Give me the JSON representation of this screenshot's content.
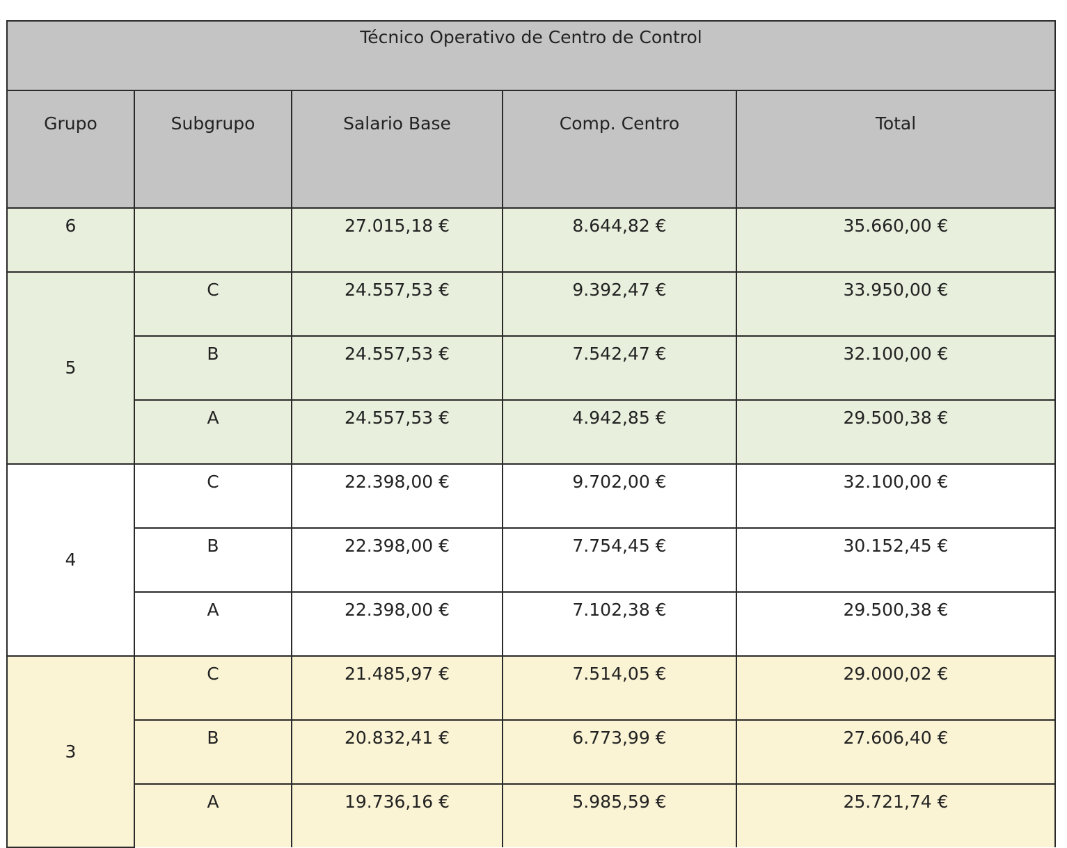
{
  "title": "Técnico Operativo de Centro de Control",
  "headers": {
    "grupo": "Grupo",
    "subgrupo": "Subgrupo",
    "salario_base": "Salario Base",
    "comp_centro": "Comp. Centro",
    "total": "Total"
  },
  "colors": {
    "header_bg": "#c4c4c4",
    "group_6_5_bg": "#e8efdd",
    "group_4_bg": "#ffffff",
    "group_3_bg": "#faf4d5"
  },
  "groups": [
    {
      "grupo": "6",
      "rows": [
        {
          "subgrupo": "",
          "salario_base": "27.015,18 €",
          "comp_centro": "8.644,82 €",
          "total": "35.660,00 €"
        }
      ]
    },
    {
      "grupo": "5",
      "rows": [
        {
          "subgrupo": "C",
          "salario_base": "24.557,53 €",
          "comp_centro": "9.392,47 €",
          "total": "33.950,00 €"
        },
        {
          "subgrupo": "B",
          "salario_base": "24.557,53 €",
          "comp_centro": "7.542,47 €",
          "total": "32.100,00 €"
        },
        {
          "subgrupo": "A",
          "salario_base": "24.557,53 €",
          "comp_centro": "4.942,85 €",
          "total": "29.500,38 €"
        }
      ]
    },
    {
      "grupo": "4",
      "rows": [
        {
          "subgrupo": "C",
          "salario_base": "22.398,00 €",
          "comp_centro": "9.702,00 €",
          "total": "32.100,00 €"
        },
        {
          "subgrupo": "B",
          "salario_base": "22.398,00 €",
          "comp_centro": "7.754,45 €",
          "total": "30.152,45 €"
        },
        {
          "subgrupo": "A",
          "salario_base": "22.398,00 €",
          "comp_centro": "7.102,38 €",
          "total": "29.500,38 €"
        }
      ]
    },
    {
      "grupo": "3",
      "rows": [
        {
          "subgrupo": "C",
          "salario_base": "21.485,97 €",
          "comp_centro": "7.514,05 €",
          "total": "29.000,02 €"
        },
        {
          "subgrupo": "B",
          "salario_base": "20.832,41 €",
          "comp_centro": "6.773,99 €",
          "total": "27.606,40 €"
        },
        {
          "subgrupo": "A",
          "salario_base": "19.736,16 €",
          "comp_centro": "5.985,59 €",
          "total": "25.721,74 €"
        }
      ]
    }
  ]
}
